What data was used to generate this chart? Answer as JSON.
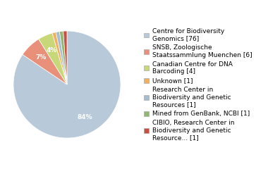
{
  "labels": [
    "Centre for Biodiversity\nGenomics [76]",
    "SNSB, Zoologische\nStaatssammlung Muenchen [6]",
    "Canadian Centre for DNA\nBarcoding [4]",
    "Unknown [1]",
    "Research Center in\nBiodiversity and Genetic\nResources [1]",
    "Mined from GenBank, NCBI [1]",
    "CIBIO, Research Center in\nBiodiversity and Genetic\nResource... [1]"
  ],
  "values": [
    76,
    6,
    4,
    1,
    1,
    1,
    1
  ],
  "colors": [
    "#b8c9d9",
    "#e8907a",
    "#c8d878",
    "#f0b060",
    "#a8bcd0",
    "#90b870",
    "#c85040"
  ],
  "startangle": 90,
  "fontsize": 6.5,
  "pct_fontsize": 6.5,
  "bg_color": "#ffffff"
}
